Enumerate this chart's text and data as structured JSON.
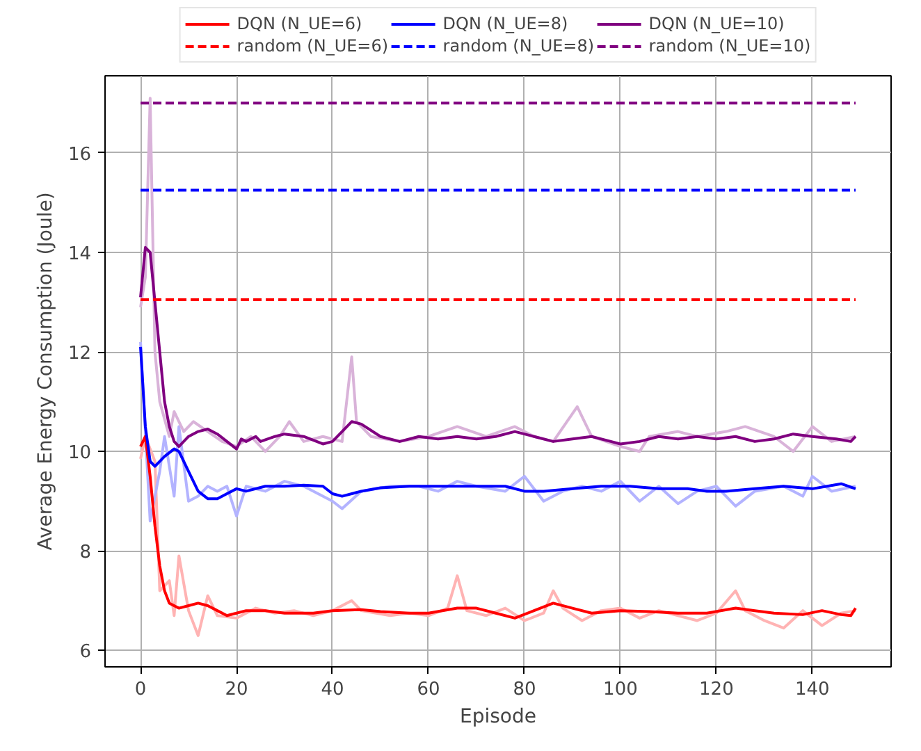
{
  "chart_data": {
    "type": "line",
    "xlabel": "Episode",
    "ylabel": "Average Energy Consumption (Joule)",
    "xlim": [
      -7.4,
      156.4
    ],
    "ylim": [
      5.67,
      17.55
    ],
    "xticks": [
      0,
      20,
      40,
      60,
      80,
      100,
      120,
      140
    ],
    "yticks": [
      6,
      8,
      10,
      12,
      14,
      16
    ],
    "grid": true,
    "legend": "top",
    "line_style": "solid",
    "series": [
      {
        "color": "#ffb3b3",
        "x": [
          0,
          1,
          3,
          4,
          6,
          7,
          8,
          10,
          12,
          14,
          16,
          20,
          24,
          28,
          32,
          36,
          40,
          44,
          46,
          52,
          56,
          60,
          64,
          66,
          68,
          72,
          76,
          80,
          84,
          86,
          88,
          92,
          96,
          100,
          104,
          108,
          112,
          116,
          120,
          124,
          126,
          130,
          134,
          138,
          142,
          146,
          149
        ],
        "values": [
          9.85,
          10.3,
          9.8,
          7.2,
          7.4,
          6.7,
          7.9,
          6.8,
          6.3,
          7.1,
          6.7,
          6.65,
          6.85,
          6.75,
          6.8,
          6.7,
          6.8,
          7.0,
          6.8,
          6.7,
          6.75,
          6.7,
          6.85,
          7.5,
          6.8,
          6.7,
          6.85,
          6.6,
          6.75,
          7.2,
          6.85,
          6.6,
          6.8,
          6.85,
          6.65,
          6.8,
          6.7,
          6.6,
          6.75,
          7.2,
          6.8,
          6.6,
          6.45,
          6.8,
          6.5,
          6.75,
          6.8
        ]
      },
      {
        "color": "#b3b3ff",
        "x": [
          0,
          2,
          4,
          5,
          7,
          8,
          10,
          12,
          14,
          16,
          18,
          20,
          22,
          26,
          30,
          34,
          40,
          42,
          46,
          52,
          58,
          62,
          66,
          70,
          76,
          80,
          84,
          88,
          92,
          96,
          100,
          104,
          108,
          112,
          116,
          120,
          124,
          128,
          134,
          138,
          140,
          144,
          149
        ],
        "values": [
          12.2,
          8.6,
          9.6,
          10.3,
          9.1,
          10.5,
          9.0,
          9.1,
          9.3,
          9.2,
          9.3,
          8.7,
          9.3,
          9.2,
          9.4,
          9.3,
          9.0,
          8.85,
          9.2,
          9.3,
          9.3,
          9.2,
          9.4,
          9.3,
          9.2,
          9.5,
          9.0,
          9.2,
          9.3,
          9.2,
          9.4,
          9.0,
          9.3,
          8.95,
          9.2,
          9.3,
          8.9,
          9.2,
          9.3,
          9.1,
          9.5,
          9.2,
          9.3
        ]
      },
      {
        "color": "#d9b3d9",
        "x": [
          0,
          1,
          2,
          3,
          4,
          6,
          7,
          9,
          11,
          14,
          17,
          20,
          23,
          26,
          29,
          31,
          34,
          38,
          42,
          44,
          45,
          48,
          54,
          60,
          66,
          72,
          78,
          82,
          86,
          91,
          94,
          100,
          104,
          106,
          112,
          116,
          122,
          126,
          132,
          136,
          140,
          144,
          149
        ],
        "values": [
          12.9,
          13.5,
          17.1,
          12.0,
          11.0,
          10.3,
          10.8,
          10.4,
          10.6,
          10.4,
          10.2,
          10.1,
          10.3,
          10.0,
          10.3,
          10.6,
          10.2,
          10.3,
          10.2,
          11.9,
          10.6,
          10.3,
          10.2,
          10.3,
          10.5,
          10.3,
          10.5,
          10.3,
          10.2,
          10.9,
          10.3,
          10.1,
          10.0,
          10.3,
          10.4,
          10.3,
          10.4,
          10.5,
          10.3,
          10.0,
          10.5,
          10.2,
          10.3
        ]
      },
      {
        "name": "DQN (N_UE=6)",
        "color": "#ff0000",
        "x": [
          0,
          1,
          2,
          3,
          4,
          5,
          6,
          8,
          10,
          12,
          14,
          16,
          18,
          20,
          22,
          26,
          30,
          36,
          40,
          46,
          50,
          56,
          60,
          66,
          70,
          74,
          78,
          82,
          86,
          90,
          94,
          100,
          106,
          112,
          118,
          124,
          128,
          132,
          138,
          142,
          146,
          148,
          149
        ],
        "values": [
          10.1,
          10.3,
          9.5,
          8.5,
          7.7,
          7.2,
          6.95,
          6.85,
          6.9,
          6.95,
          6.9,
          6.8,
          6.7,
          6.75,
          6.8,
          6.8,
          6.75,
          6.75,
          6.8,
          6.82,
          6.78,
          6.75,
          6.75,
          6.85,
          6.85,
          6.75,
          6.65,
          6.8,
          6.95,
          6.85,
          6.75,
          6.8,
          6.78,
          6.75,
          6.75,
          6.85,
          6.8,
          6.75,
          6.72,
          6.8,
          6.72,
          6.7,
          6.85
        ]
      },
      {
        "name": "DQN (N_UE=8)",
        "color": "#0000ff",
        "x": [
          0,
          1,
          2,
          3,
          5,
          7,
          8,
          10,
          12,
          14,
          16,
          18,
          20,
          22,
          26,
          30,
          34,
          38,
          40,
          42,
          46,
          50,
          56,
          60,
          66,
          72,
          76,
          80,
          84,
          90,
          96,
          102,
          108,
          114,
          118,
          122,
          128,
          134,
          140,
          146,
          149
        ],
        "values": [
          12.1,
          10.5,
          9.8,
          9.7,
          9.9,
          10.05,
          10.0,
          9.6,
          9.2,
          9.05,
          9.05,
          9.15,
          9.25,
          9.2,
          9.3,
          9.3,
          9.32,
          9.3,
          9.15,
          9.1,
          9.2,
          9.27,
          9.3,
          9.3,
          9.3,
          9.3,
          9.3,
          9.2,
          9.2,
          9.25,
          9.3,
          9.3,
          9.25,
          9.25,
          9.2,
          9.2,
          9.25,
          9.3,
          9.25,
          9.35,
          9.25
        ]
      },
      {
        "name": "DQN (N_UE=10)",
        "color": "#800080",
        "x": [
          0,
          1,
          2,
          3,
          4,
          5,
          6,
          7,
          8,
          10,
          12,
          14,
          16,
          18,
          20,
          21,
          22,
          24,
          25,
          28,
          30,
          34,
          38,
          40,
          44,
          46,
          50,
          54,
          58,
          62,
          66,
          70,
          74,
          78,
          82,
          86,
          90,
          94,
          98,
          100,
          104,
          108,
          112,
          116,
          120,
          124,
          128,
          132,
          136,
          140,
          145,
          148,
          149
        ],
        "values": [
          13.1,
          14.1,
          14.0,
          13.0,
          12.0,
          11.0,
          10.5,
          10.2,
          10.1,
          10.3,
          10.4,
          10.45,
          10.35,
          10.2,
          10.05,
          10.25,
          10.2,
          10.3,
          10.2,
          10.3,
          10.35,
          10.3,
          10.15,
          10.2,
          10.6,
          10.55,
          10.3,
          10.2,
          10.3,
          10.25,
          10.3,
          10.25,
          10.3,
          10.4,
          10.3,
          10.2,
          10.25,
          10.3,
          10.2,
          10.15,
          10.2,
          10.3,
          10.25,
          10.3,
          10.25,
          10.3,
          10.2,
          10.25,
          10.35,
          10.3,
          10.25,
          10.2,
          10.3
        ]
      },
      {
        "name": "random (N_UE=6)",
        "color": "#ff0000",
        "line_style": "dashed",
        "x": [
          0,
          149
        ],
        "values": [
          13.05,
          13.05
        ]
      },
      {
        "name": "random (N_UE=8)",
        "color": "#0000ff",
        "line_style": "dashed",
        "x": [
          0,
          149
        ],
        "values": [
          15.25,
          15.25
        ]
      },
      {
        "name": "random (N_UE=10)",
        "color": "#800080",
        "line_style": "dashed",
        "x": [
          0,
          149
        ],
        "values": [
          17.0,
          17.0
        ]
      }
    ]
  }
}
